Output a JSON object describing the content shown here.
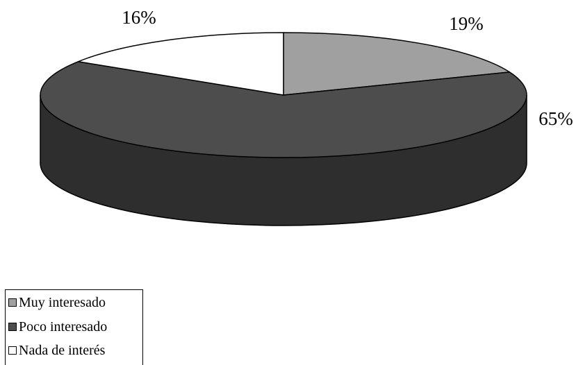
{
  "chart_data": {
    "type": "pie",
    "style": "3d",
    "categories": [
      "Muy interesado",
      "Poco interesado",
      "Nada de interés"
    ],
    "values": [
      19,
      65,
      16
    ],
    "labels": [
      "19%",
      "65%",
      "16%"
    ],
    "colors": [
      "#a0a0a0",
      "#4d4d4d",
      "#ffffff"
    ],
    "legend_position": "bottom-left",
    "legend": [
      "Muy interesado",
      "Poco interesado",
      "Nada de interés"
    ]
  }
}
